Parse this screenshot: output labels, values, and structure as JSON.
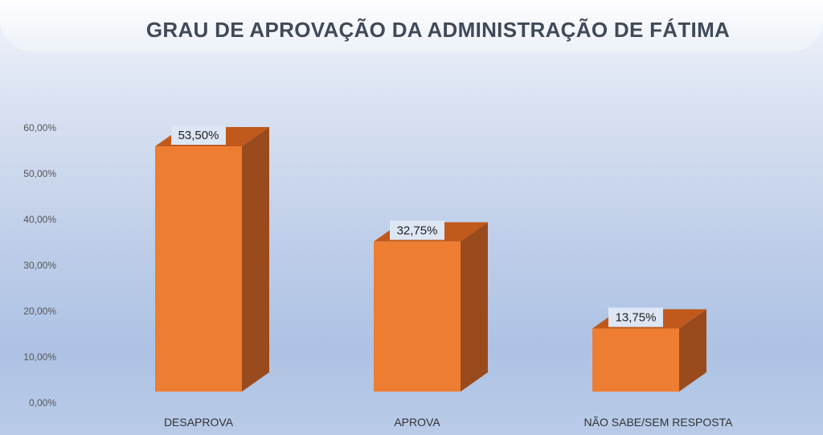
{
  "chart_data": {
    "type": "bar",
    "title": "GRAU DE APROVAÇÃO DA ADMINISTRAÇÃO DE FÁTIMA",
    "categories": [
      "DESAPROVA",
      "APROVA",
      "NÃO SABE/SEM RESPOSTA"
    ],
    "values": [
      53.5,
      32.75,
      13.75
    ],
    "data_labels": [
      "53,50%",
      "32,75%",
      "13,75%"
    ],
    "y_ticks": [
      "0,00%",
      "10,00%",
      "20,00%",
      "30,00%",
      "40,00%",
      "50,00%",
      "60,00%"
    ],
    "ylim": [
      0,
      60
    ],
    "style": "3d-column",
    "legend": "none",
    "grid": false
  },
  "colors": {
    "bar_front": "#ed7d31",
    "bar_side": "#9a4b1d",
    "bar_top": "#c0591b",
    "label_bg": "#dde6f4"
  }
}
